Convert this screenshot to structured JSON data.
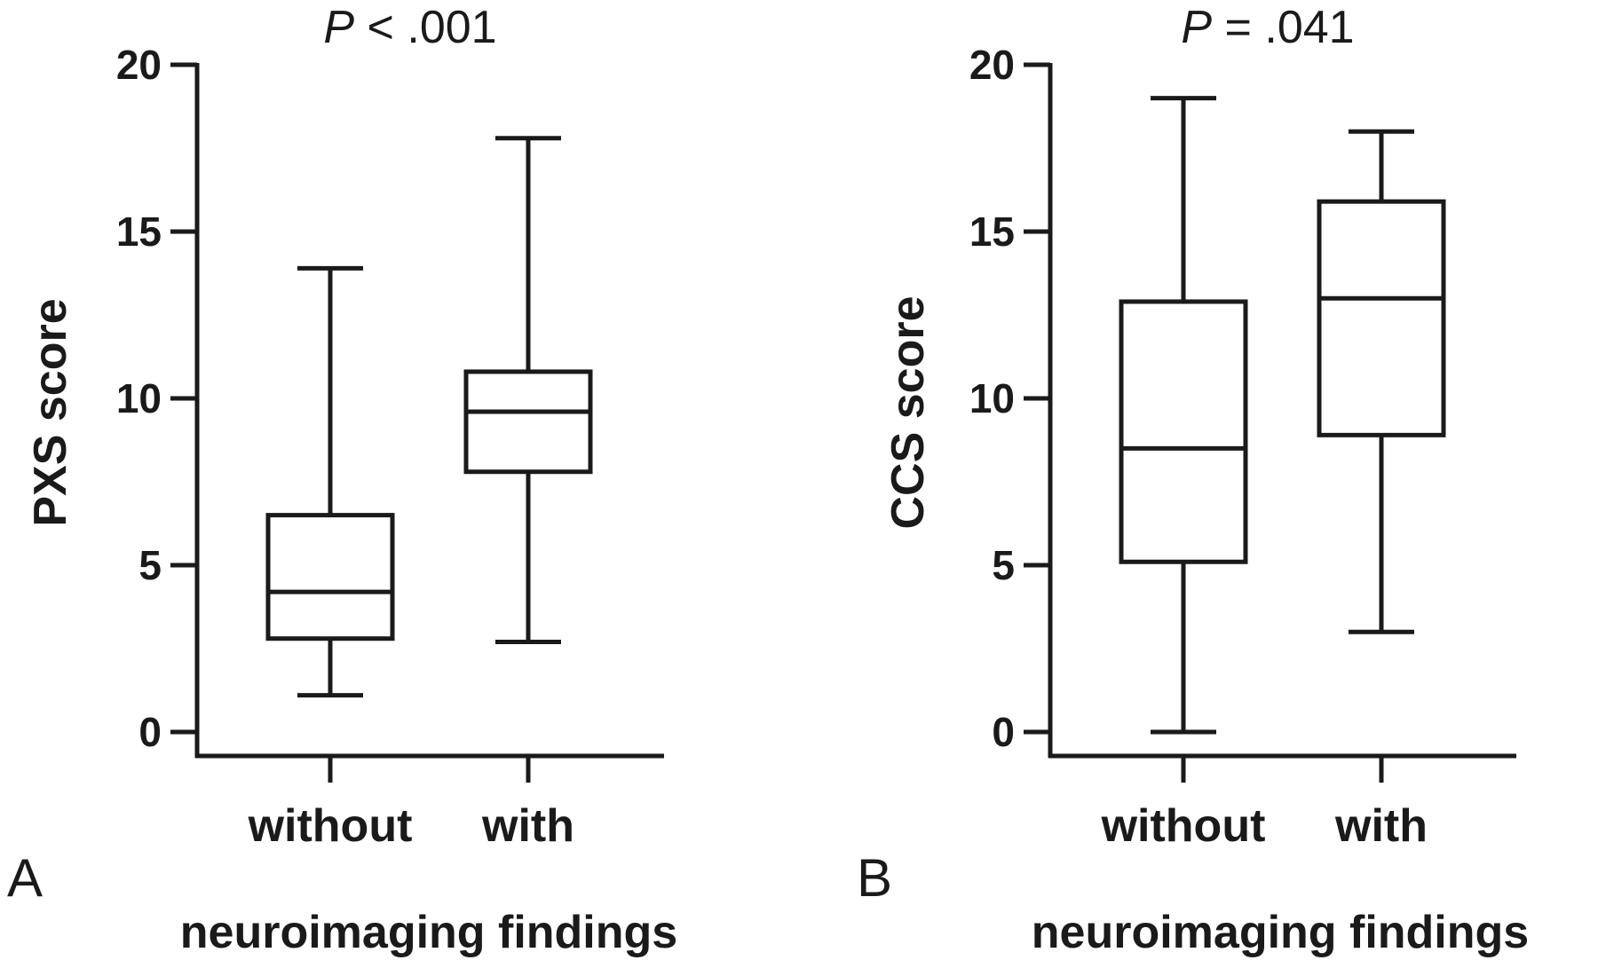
{
  "chart_data": [
    {
      "type": "boxplot",
      "panel_label": "A",
      "title": {
        "p_symbol": "P",
        "p_rest": " < .001"
      },
      "ylabel": "PXS score",
      "xlabel": "neuroimaging findings",
      "ylim": [
        0,
        20
      ],
      "yticks": [
        "0",
        "5",
        "10",
        "15",
        "20"
      ],
      "grid": false,
      "categories": [
        "without",
        "with"
      ],
      "boxes": [
        {
          "category": "without",
          "min": 1.1,
          "q1": 2.8,
          "median": 4.2,
          "q3": 6.5,
          "max": 13.9
        },
        {
          "category": "with",
          "min": 2.7,
          "q1": 7.8,
          "median": 9.6,
          "q3": 10.8,
          "max": 17.8
        }
      ]
    },
    {
      "type": "boxplot",
      "panel_label": "B",
      "title": {
        "p_symbol": "P",
        "p_rest": " = .041"
      },
      "ylabel": "CCS score",
      "xlabel": "neuroimaging findings",
      "ylim": [
        0,
        20
      ],
      "yticks": [
        "0",
        "5",
        "10",
        "15",
        "20"
      ],
      "grid": false,
      "categories": [
        "without",
        "with"
      ],
      "boxes": [
        {
          "category": "without",
          "min": 0,
          "q1": 5.1,
          "median": 8.5,
          "q3": 12.9,
          "max": 19.0
        },
        {
          "category": "with",
          "min": 3.0,
          "q1": 8.9,
          "median": 13.0,
          "q3": 15.9,
          "max": 18.0
        }
      ]
    }
  ]
}
